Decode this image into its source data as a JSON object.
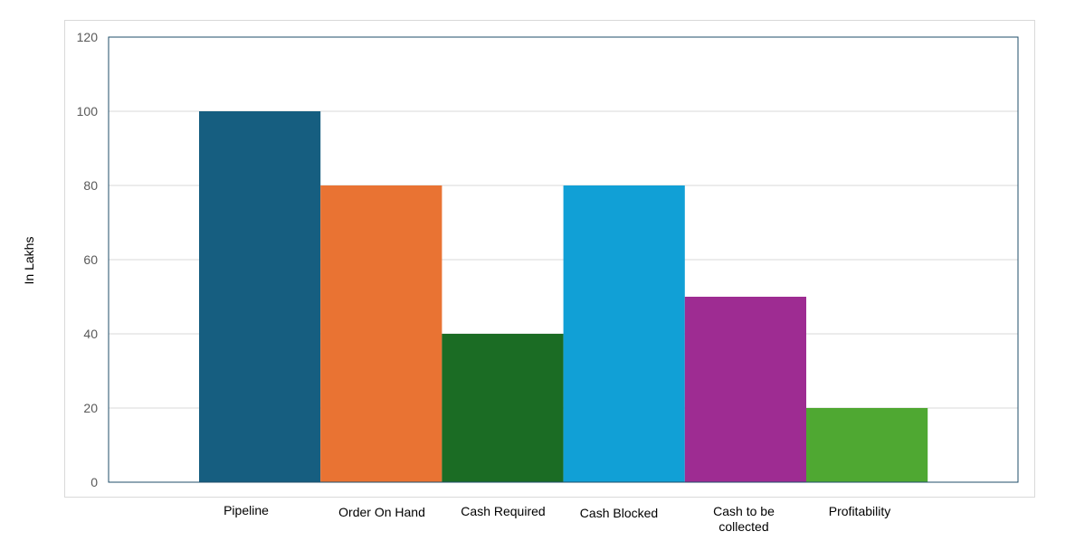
{
  "chart_data": {
    "type": "bar",
    "title": "",
    "xlabel": "",
    "ylabel": "In Lakhs",
    "ylim": [
      0,
      120
    ],
    "yticks": [
      0,
      20,
      40,
      60,
      80,
      100,
      120
    ],
    "grid": true,
    "legend": "none",
    "categories": [
      "Pipeline",
      "Order On Hand",
      "Cash Required",
      "Cash Blocked",
      "Cash to be collected",
      "Profitability"
    ],
    "category_label_lines": [
      [
        "Pipeline"
      ],
      [
        "Order On Hand"
      ],
      [
        "Cash Required"
      ],
      [
        "Cash Blocked"
      ],
      [
        "Cash to be",
        "collected"
      ],
      [
        "Profitability"
      ]
    ],
    "values": [
      100,
      80,
      40,
      80,
      50,
      20
    ],
    "colors": [
      "#165e80",
      "#e97333",
      "#1b6c24",
      "#11a0d6",
      "#9e2c92",
      "#4fa832"
    ]
  }
}
